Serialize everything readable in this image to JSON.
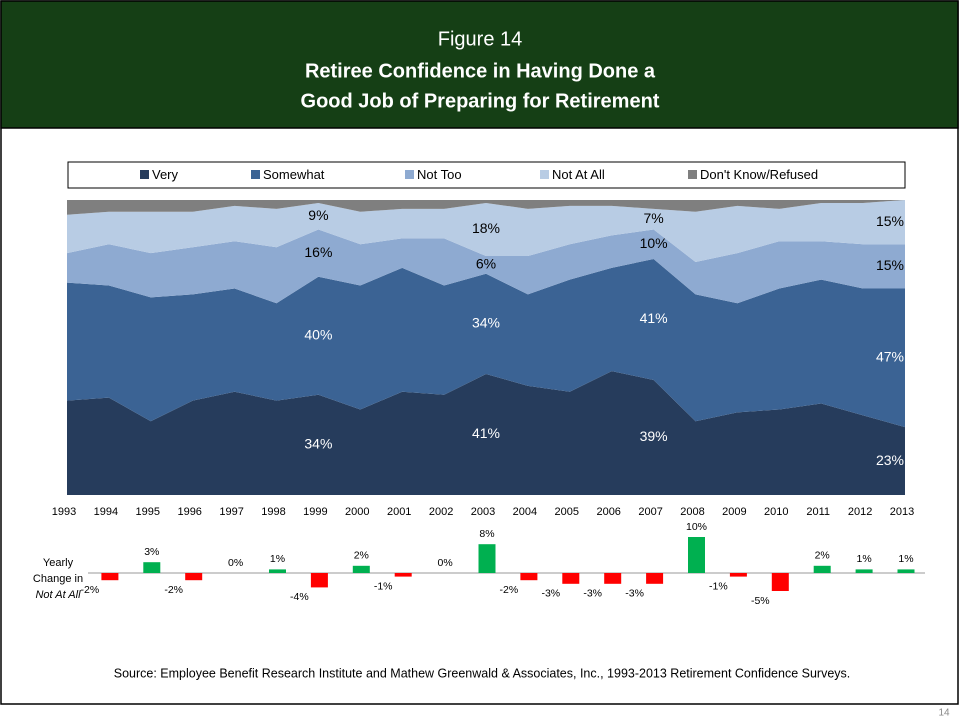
{
  "header": {
    "figure": "Figure 14",
    "title": [
      "Retiree Confidence in Having Done a",
      "Good Job of Preparing for Retirement"
    ]
  },
  "chart_data": [
    {
      "type": "area",
      "stacked": true,
      "categories": [
        "1993",
        "1994",
        "1995",
        "1996",
        "1997",
        "1998",
        "1999",
        "2000",
        "2001",
        "2002",
        "2003",
        "2004",
        "2005",
        "2006",
        "2007",
        "2008",
        "2009",
        "2010",
        "2011",
        "2012",
        "2013"
      ],
      "ylim": [
        0,
        100
      ],
      "legend": "top",
      "series": [
        {
          "name": "Very",
          "color": "#263c5c",
          "label_color": "#ffffff",
          "values": [
            32,
            33,
            25,
            32,
            35,
            32,
            34,
            29,
            35,
            34,
            41,
            37,
            35,
            42,
            39,
            25,
            28,
            29,
            31,
            27,
            23
          ],
          "value_labels": [
            null,
            null,
            null,
            null,
            null,
            null,
            "34%",
            null,
            null,
            null,
            "41%",
            null,
            null,
            null,
            "39%",
            null,
            null,
            null,
            null,
            null,
            "23%"
          ]
        },
        {
          "name": "Somewhat",
          "color": "#3b6394",
          "label_color": "#ffffff",
          "values": [
            40,
            38,
            42,
            36,
            35,
            33,
            40,
            42,
            42,
            37,
            34,
            31,
            38,
            35,
            41,
            43,
            37,
            41,
            42,
            43,
            47
          ],
          "value_labels": [
            null,
            null,
            null,
            null,
            null,
            null,
            "40%",
            null,
            null,
            null,
            "34%",
            null,
            null,
            null,
            "41%",
            null,
            null,
            null,
            null,
            null,
            "47%"
          ]
        },
        {
          "name": "Not Too",
          "color": "#8eaad1",
          "label_color": "#000000",
          "values": [
            10,
            14,
            15,
            16,
            16,
            19,
            16,
            14,
            10,
            16,
            6,
            13,
            12,
            11,
            10,
            11,
            17,
            16,
            13,
            15,
            15
          ],
          "value_labels": [
            null,
            null,
            null,
            null,
            null,
            null,
            "16%",
            null,
            null,
            null,
            "6%",
            null,
            null,
            null,
            "10%",
            null,
            null,
            null,
            null,
            null,
            "15%"
          ]
        },
        {
          "name": "Not At All",
          "color": "#b8cce4",
          "label_color": "#000000",
          "values": [
            13,
            11,
            14,
            12,
            12,
            13,
            9,
            11,
            10,
            10,
            18,
            16,
            13,
            10,
            7,
            17,
            16,
            11,
            13,
            14,
            15
          ],
          "value_labels": [
            null,
            null,
            null,
            null,
            null,
            null,
            "9%",
            null,
            null,
            null,
            "18%",
            null,
            null,
            null,
            "7%",
            null,
            null,
            null,
            null,
            null,
            "15%"
          ]
        },
        {
          "name": "Don't Know/Refused",
          "color": "#7f7f7f",
          "label_color": "#000000",
          "values": [
            5,
            4,
            4,
            4,
            2,
            3,
            1,
            4,
            3,
            3,
            1,
            3,
            2,
            2,
            3,
            4,
            2,
            3,
            1,
            1,
            0
          ]
        }
      ]
    },
    {
      "type": "bar",
      "y_label": [
        "Yearly",
        "Change in",
        "Not At All"
      ],
      "categories": [
        "1994",
        "1995",
        "1996",
        "1997",
        "1998",
        "1999",
        "2000",
        "2001",
        "2002",
        "2003",
        "2004",
        "2005",
        "2006",
        "2007",
        "2008",
        "2009",
        "2010",
        "2011",
        "2012",
        "2013"
      ],
      "values": [
        -2,
        3,
        -2,
        0,
        1,
        -4,
        2,
        -1,
        0,
        8,
        -2,
        -3,
        -3,
        -3,
        10,
        -1,
        -5,
        2,
        1,
        1
      ],
      "value_labels": [
        "-2%",
        "3%",
        "-2%",
        "0%",
        "1%",
        "-4%",
        "2%",
        "-1%",
        "0%",
        "8%",
        "-2%",
        "-3%",
        "-3%",
        "-3%",
        "10%",
        "-1%",
        "-5%",
        "2%",
        "1%",
        "1%"
      ],
      "ylim": [
        -10,
        10
      ],
      "color": "#00b050",
      "negative_color": "#ff0000"
    }
  ],
  "source": "Source:  Employee Benefit Research Institute and Mathew Greenwald & Associates, Inc., 1993-2013 Retirement Confidence Surveys.",
  "page_number": "14"
}
